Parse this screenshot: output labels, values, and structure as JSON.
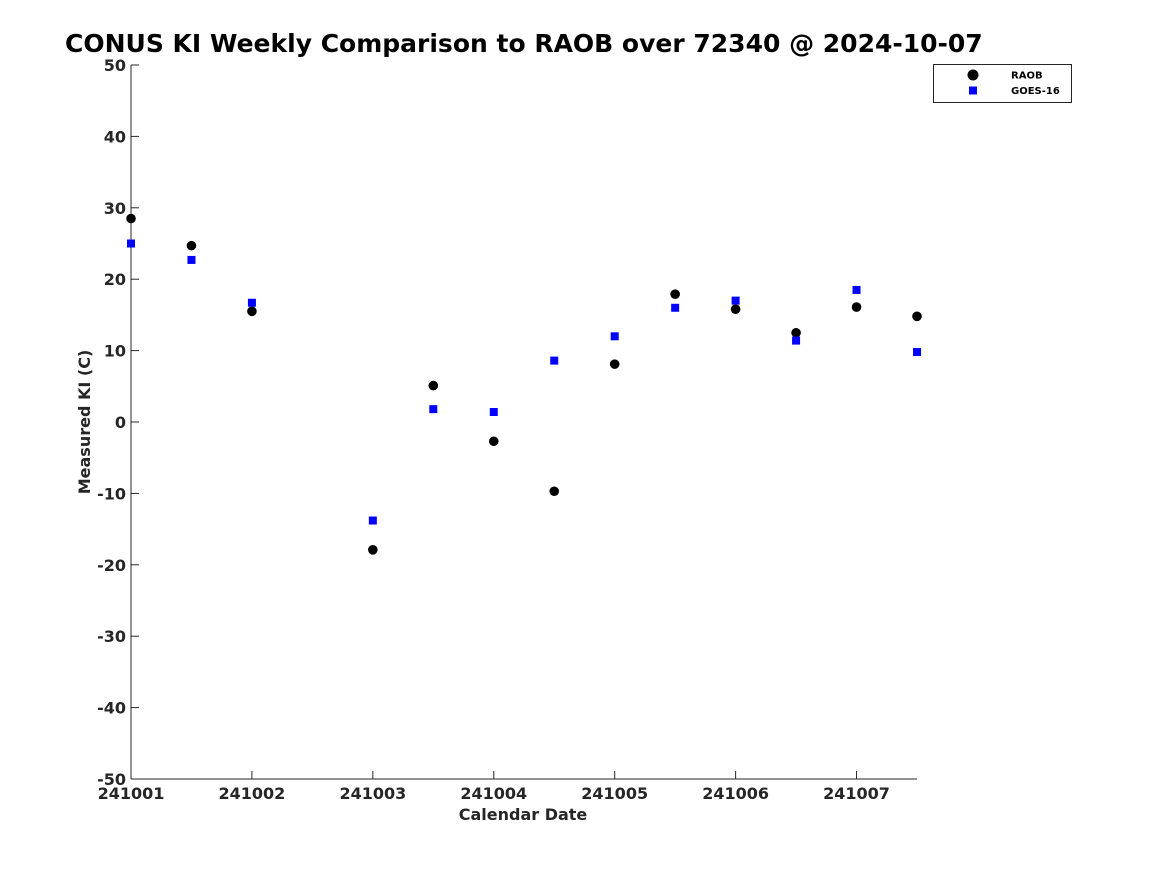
{
  "chart_data": {
    "type": "scatter",
    "title": "CONUS KI Weekly Comparison to RAOB over 72340 @ 2024-10-07",
    "xlabel": "Calendar Date",
    "ylabel": "Measured KI (C)",
    "xlim": [
      0,
      6.5
    ],
    "ylim": [
      -50,
      50
    ],
    "x_ticks": [
      {
        "value": 0,
        "label": "241001"
      },
      {
        "value": 1,
        "label": "241002"
      },
      {
        "value": 2,
        "label": "241003"
      },
      {
        "value": 3,
        "label": "241004"
      },
      {
        "value": 4,
        "label": "241005"
      },
      {
        "value": 5,
        "label": "241006"
      },
      {
        "value": 6,
        "label": "241007"
      }
    ],
    "y_ticks": [
      {
        "value": 50,
        "label": "50"
      },
      {
        "value": 40,
        "label": "40"
      },
      {
        "value": 30,
        "label": "30"
      },
      {
        "value": 20,
        "label": "20"
      },
      {
        "value": 10,
        "label": "10"
      },
      {
        "value": 0,
        "label": "0"
      },
      {
        "value": -10,
        "label": "-10"
      },
      {
        "value": -20,
        "label": "-20"
      },
      {
        "value": -30,
        "label": "-30"
      },
      {
        "value": -40,
        "label": "-40"
      },
      {
        "value": -50,
        "label": "-50"
      }
    ],
    "grid": false,
    "legend_position": "top-right",
    "series": [
      {
        "name": "RAOB",
        "marker": "circle",
        "color": "#000000",
        "x": [
          0,
          0.5,
          1,
          2,
          2.5,
          3,
          3.5,
          4,
          4.5,
          5,
          5.5,
          6,
          6.5
        ],
        "y": [
          28.5,
          24.7,
          15.5,
          -17.9,
          5.1,
          -2.7,
          -9.7,
          8.1,
          17.9,
          15.8,
          12.5,
          16.1,
          14.8
        ]
      },
      {
        "name": "GOES-16",
        "marker": "square",
        "color": "#0000ff",
        "x": [
          0,
          0.5,
          1,
          2,
          2.5,
          3,
          3.5,
          4,
          4.5,
          5,
          5.5,
          6,
          6.5
        ],
        "y": [
          25.0,
          22.7,
          16.7,
          -13.8,
          1.8,
          1.4,
          8.6,
          12.0,
          16.0,
          17.0,
          11.4,
          18.5,
          9.8
        ]
      }
    ]
  }
}
